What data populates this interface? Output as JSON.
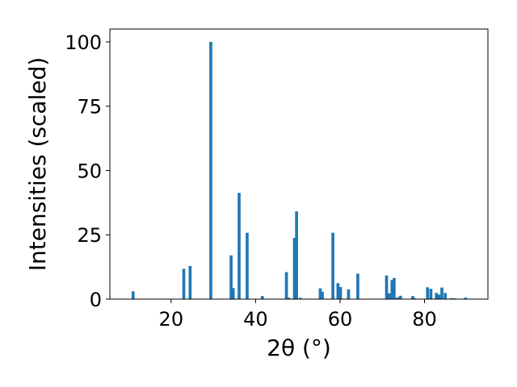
{
  "chart_data": {
    "type": "bar",
    "xlabel": "2θ (°)",
    "ylabel": "Intensities (scaled)",
    "xlim": [
      5.5,
      95
    ],
    "ylim": [
      0,
      105
    ],
    "xticks": [
      20,
      40,
      60,
      80
    ],
    "yticks": [
      0,
      25,
      50,
      75,
      100
    ],
    "grid": false,
    "bar_color": "#1f77b4",
    "bar_width": 0.7,
    "x": [
      11.0,
      23.0,
      24.5,
      29.4,
      34.2,
      34.7,
      36.1,
      38.0,
      41.6,
      47.3,
      47.8,
      49.2,
      49.7,
      50.6,
      55.3,
      55.8,
      58.3,
      59.5,
      60.1,
      62.0,
      64.2,
      71.0,
      71.6,
      72.3,
      72.8,
      73.6,
      74.3,
      77.2,
      77.6,
      80.7,
      81.5,
      82.8,
      83.4,
      84.1,
      84.9,
      86.4,
      87.2,
      89.7
    ],
    "values": [
      3.0,
      11.8,
      12.9,
      100.0,
      17.0,
      4.3,
      41.3,
      25.8,
      1.2,
      10.5,
      0.6,
      23.8,
      34.1,
      0.5,
      4.2,
      2.9,
      25.8,
      6.2,
      4.7,
      3.8,
      9.9,
      9.2,
      2.3,
      7.4,
      8.2,
      0.7,
      1.3,
      1.2,
      0.4,
      4.6,
      4.0,
      2.4,
      1.8,
      4.5,
      2.4,
      0.4,
      0.3,
      0.6
    ]
  }
}
